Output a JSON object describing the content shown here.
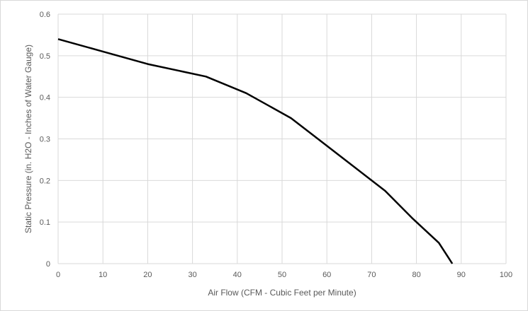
{
  "chart_data": {
    "type": "line",
    "title": "",
    "xlabel": "Air Flow (CFM - Cubic Feet per Minute)",
    "ylabel": "Static Pressure (in. H2O - Inches of Water Gauge)",
    "xlim": [
      0,
      100
    ],
    "ylim": [
      0,
      0.6
    ],
    "x_ticks": [
      "0",
      "10",
      "20",
      "30",
      "40",
      "50",
      "60",
      "70",
      "80",
      "90",
      "100"
    ],
    "y_ticks": [
      "0",
      "0.1",
      "0.2",
      "0.3",
      "0.4",
      "0.5",
      "0.6"
    ],
    "grid": true,
    "legend": "none",
    "series": [
      {
        "color": "#000000",
        "x": [
          0,
          10,
          20,
          33,
          42,
          52,
          58,
          64,
          73,
          79,
          85,
          88
        ],
        "y": [
          0.54,
          0.51,
          0.48,
          0.45,
          0.41,
          0.35,
          0.3,
          0.25,
          0.175,
          0.11,
          0.05,
          0
        ]
      }
    ]
  }
}
